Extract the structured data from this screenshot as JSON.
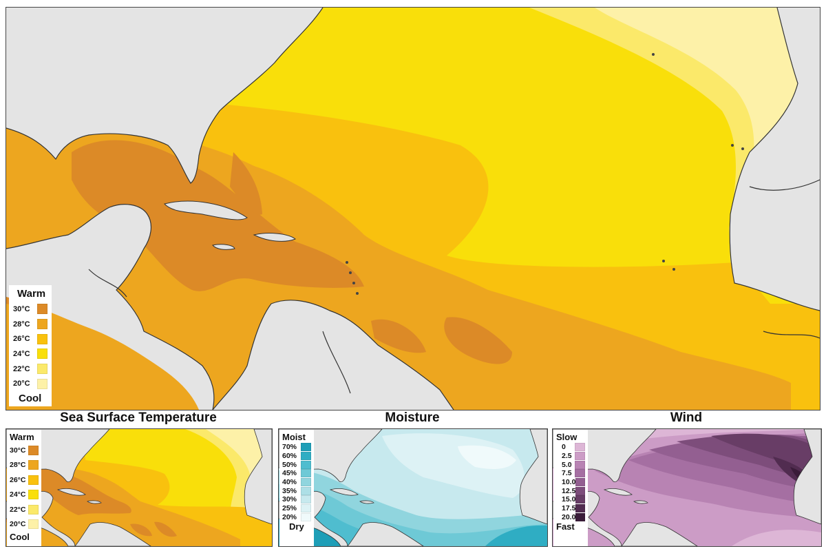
{
  "captions": {
    "sst": "Sea Surface Temperature",
    "moisture": "Moisture",
    "wind": "Wind"
  },
  "legends": {
    "temperature": {
      "top_label": "Warm",
      "bottom_label": "Cool",
      "entries": [
        {
          "label": "30°C",
          "color": "#dc8a27"
        },
        {
          "label": "28°C",
          "color": "#eda61f"
        },
        {
          "label": "26°C",
          "color": "#f9c10e"
        },
        {
          "label": "24°C",
          "color": "#f9df0a"
        },
        {
          "label": "22°C",
          "color": "#fbe96a"
        },
        {
          "label": "20°C",
          "color": "#fdf1a8"
        }
      ]
    },
    "moisture": {
      "top_label": "Moist",
      "bottom_label": "Dry",
      "entries": [
        {
          "label": "70%",
          "color": "#1e9eb7"
        },
        {
          "label": "60%",
          "color": "#2fadc3"
        },
        {
          "label": "50%",
          "color": "#4fbdcf"
        },
        {
          "label": "45%",
          "color": "#6ec9d6"
        },
        {
          "label": "40%",
          "color": "#90d5de"
        },
        {
          "label": "35%",
          "color": "#addfe6"
        },
        {
          "label": "30%",
          "color": "#c7e9ee"
        },
        {
          "label": "25%",
          "color": "#ddf2f5"
        },
        {
          "label": "20%",
          "color": "#f0fafb"
        }
      ]
    },
    "wind": {
      "top_label": "Slow",
      "bottom_label": "Fast",
      "entries": [
        {
          "label": "0",
          "color": "#ddb6d6"
        },
        {
          "label": "2.5",
          "color": "#cc9cc6"
        },
        {
          "label": "5.0",
          "color": "#b883b3"
        },
        {
          "label": "7.5",
          "color": "#a56fa2"
        },
        {
          "label": "10.0",
          "color": "#935f91"
        },
        {
          "label": "12.5",
          "color": "#7d4d7b"
        },
        {
          "label": "15.0",
          "color": "#683d66"
        },
        {
          "label": "17.5",
          "color": "#512c50"
        },
        {
          "label": "20.0",
          "color": "#3a1c39"
        }
      ]
    }
  }
}
